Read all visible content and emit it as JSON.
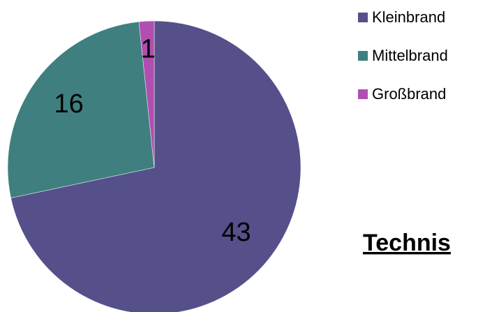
{
  "chart_data": {
    "type": "pie",
    "categories": [
      "Kleinbrand",
      "Mittelbrand",
      "Großbrand"
    ],
    "values": [
      43,
      16,
      1
    ],
    "colors": [
      "#55508a",
      "#3f7f80",
      "#b04fb0"
    ],
    "legend": "right",
    "annotation": "Technis"
  }
}
